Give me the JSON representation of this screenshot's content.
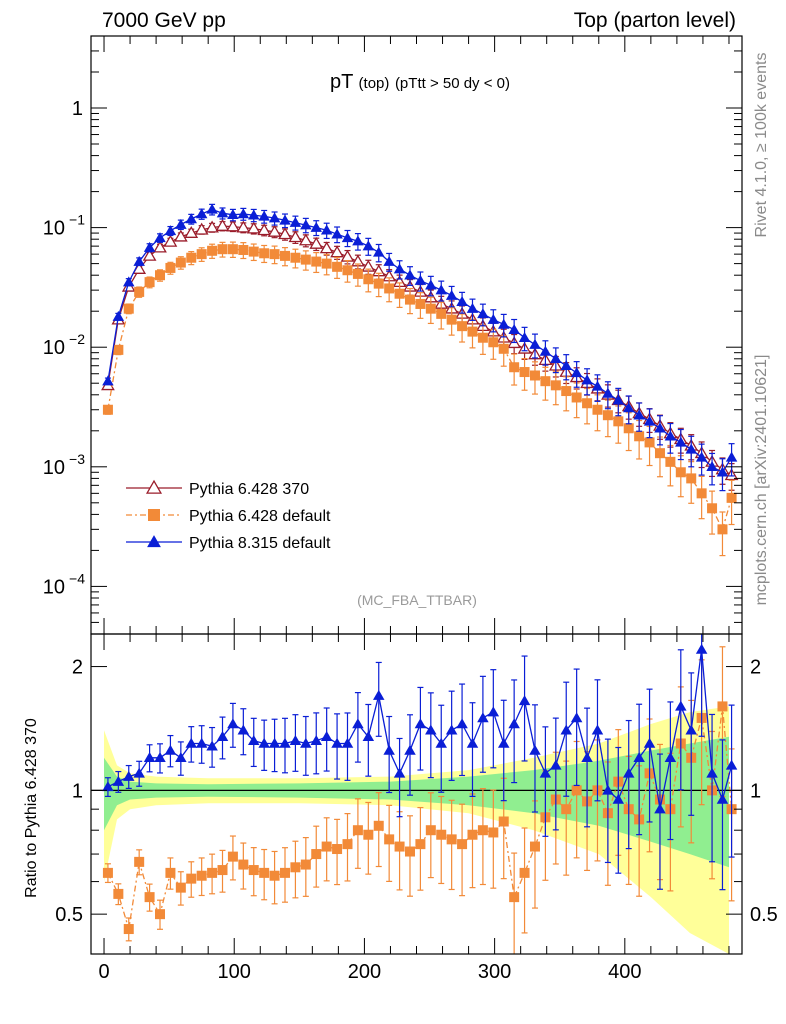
{
  "header": {
    "left": "7000 GeV pp",
    "right": "Top (parton level)"
  },
  "side_labels": {
    "rivet": "Rivet 4.1.0, ≥ 100k events",
    "mcplots": "mcplots.cern.ch [arXiv:2401.10621]"
  },
  "colors": {
    "p6_370": "#9a1c2a",
    "p6_default": "#f28a38",
    "p8_default": "#0a1ed6",
    "band_yellow": "#ffff99",
    "band_green": "#90ee90"
  },
  "chart_data": [
    {
      "type": "line",
      "panel": "main",
      "title_main": "pT",
      "title_sub": "(top)",
      "title_cut": "(pTtt > 50 dy < 0)",
      "annotation": "(MC_FBA_TTBAR)",
      "yscale": "log",
      "xlim": [
        -10,
        490
      ],
      "ylim": [
        4e-05,
        4
      ],
      "ytick_labels": [
        {
          "v": 1,
          "base": "1",
          "exp": ""
        },
        {
          "v": 0.1,
          "base": "10",
          "exp": "−1"
        },
        {
          "v": 0.01,
          "base": "10",
          "exp": "−2"
        },
        {
          "v": 0.001,
          "base": "10",
          "exp": "−3"
        },
        {
          "v": 0.0001,
          "base": "10",
          "exp": "−4"
        }
      ],
      "legend": {
        "position": "lower-left",
        "entries": [
          {
            "key": "p6_370",
            "label": "Pythia 6.428 370"
          },
          {
            "key": "p6_default",
            "label": "Pythia 6.428 default"
          },
          {
            "key": "p8_default",
            "label": "Pythia 8.315 default"
          }
        ]
      },
      "series": [
        {
          "name": "Pythia 6.428 370",
          "key": "p6_370",
          "marker": "open-triangle",
          "points": [
            [
              3,
              0.0048
            ],
            [
              11,
              0.017
            ],
            [
              19,
              0.032
            ],
            [
              27,
              0.045
            ],
            [
              35,
              0.058
            ],
            [
              43,
              0.068
            ],
            [
              51,
              0.076
            ],
            [
              59,
              0.084
            ],
            [
              67,
              0.09
            ],
            [
              75,
              0.096
            ],
            [
              83,
              0.1
            ],
            [
              91,
              0.103
            ],
            [
              99,
              0.102
            ],
            [
              107,
              0.1
            ],
            [
              115,
              0.098
            ],
            [
              123,
              0.095
            ],
            [
              131,
              0.092
            ],
            [
              139,
              0.088
            ],
            [
              147,
              0.083
            ],
            [
              155,
              0.078
            ],
            [
              163,
              0.073
            ],
            [
              171,
              0.067
            ],
            [
              179,
              0.062
            ],
            [
              187,
              0.057
            ],
            [
              195,
              0.052
            ],
            [
              203,
              0.047
            ],
            [
              211,
              0.043
            ],
            [
              219,
              0.039
            ],
            [
              227,
              0.035
            ],
            [
              235,
              0.032
            ],
            [
              243,
              0.029
            ],
            [
              251,
              0.026
            ],
            [
              259,
              0.023
            ],
            [
              267,
              0.021
            ],
            [
              275,
              0.019
            ],
            [
              283,
              0.017
            ],
            [
              291,
              0.015
            ],
            [
              299,
              0.0135
            ],
            [
              307,
              0.012
            ],
            [
              315,
              0.0108
            ],
            [
              323,
              0.0097
            ],
            [
              331,
              0.0087
            ],
            [
              339,
              0.0078
            ],
            [
              347,
              0.007
            ],
            [
              355,
              0.0062
            ],
            [
              363,
              0.0056
            ],
            [
              371,
              0.005
            ],
            [
              379,
              0.0045
            ],
            [
              387,
              0.004
            ],
            [
              395,
              0.0036
            ],
            [
              403,
              0.0032
            ],
            [
              411,
              0.0028
            ],
            [
              419,
              0.0025
            ],
            [
              427,
              0.0022
            ],
            [
              435,
              0.0019
            ],
            [
              443,
              0.0017
            ],
            [
              451,
              0.0015
            ],
            [
              459,
              0.0013
            ],
            [
              467,
              0.0011
            ],
            [
              475,
              0.00095
            ],
            [
              482,
              0.00085
            ]
          ],
          "rel_err": 0.05
        },
        {
          "name": "Pythia 6.428 default",
          "key": "p6_default",
          "marker": "filled-square",
          "points": [
            [
              3,
              0.003
            ],
            [
              11,
              0.0095
            ],
            [
              19,
              0.021
            ],
            [
              27,
              0.029
            ],
            [
              35,
              0.035
            ],
            [
              43,
              0.04
            ],
            [
              51,
              0.046
            ],
            [
              59,
              0.051
            ],
            [
              67,
              0.056
            ],
            [
              75,
              0.06
            ],
            [
              83,
              0.064
            ],
            [
              91,
              0.066
            ],
            [
              99,
              0.066
            ],
            [
              107,
              0.065
            ],
            [
              115,
              0.063
            ],
            [
              123,
              0.061
            ],
            [
              131,
              0.06
            ],
            [
              139,
              0.058
            ],
            [
              147,
              0.056
            ],
            [
              155,
              0.054
            ],
            [
              163,
              0.052
            ],
            [
              171,
              0.05
            ],
            [
              179,
              0.047
            ],
            [
              187,
              0.044
            ],
            [
              195,
              0.041
            ],
            [
              203,
              0.037
            ],
            [
              211,
              0.034
            ],
            [
              219,
              0.031
            ],
            [
              227,
              0.028
            ],
            [
              235,
              0.025
            ],
            [
              243,
              0.023
            ],
            [
              251,
              0.021
            ],
            [
              259,
              0.019
            ],
            [
              267,
              0.017
            ],
            [
              275,
              0.015
            ],
            [
              283,
              0.0135
            ],
            [
              291,
              0.012
            ],
            [
              299,
              0.011
            ],
            [
              307,
              0.0097
            ],
            [
              315,
              0.0068
            ],
            [
              323,
              0.0062
            ],
            [
              331,
              0.0058
            ],
            [
              339,
              0.0052
            ],
            [
              347,
              0.0048
            ],
            [
              355,
              0.0043
            ],
            [
              363,
              0.0038
            ],
            [
              371,
              0.0034
            ],
            [
              379,
              0.003
            ],
            [
              387,
              0.0027
            ],
            [
              395,
              0.0024
            ],
            [
              403,
              0.0021
            ],
            [
              411,
              0.0018
            ],
            [
              419,
              0.0016
            ],
            [
              427,
              0.0013
            ],
            [
              435,
              0.0011
            ],
            [
              443,
              0.0009
            ],
            [
              451,
              0.0008
            ],
            [
              459,
              0.0006
            ],
            [
              467,
              0.00045
            ],
            [
              475,
              0.0003
            ],
            [
              482,
              0.00055
            ]
          ],
          "rel_err": 0.08
        },
        {
          "name": "Pythia 8.315 default",
          "key": "p8_default",
          "marker": "filled-triangle",
          "points": [
            [
              3,
              0.0052
            ],
            [
              11,
              0.018
            ],
            [
              19,
              0.035
            ],
            [
              27,
              0.052
            ],
            [
              35,
              0.068
            ],
            [
              43,
              0.082
            ],
            [
              51,
              0.094
            ],
            [
              59,
              0.106
            ],
            [
              67,
              0.118
            ],
            [
              75,
              0.13
            ],
            [
              83,
              0.142
            ],
            [
              91,
              0.132
            ],
            [
              99,
              0.128
            ],
            [
              107,
              0.13
            ],
            [
              115,
              0.127
            ],
            [
              123,
              0.124
            ],
            [
              131,
              0.12
            ],
            [
              139,
              0.115
            ],
            [
              147,
              0.11
            ],
            [
              155,
              0.105
            ],
            [
              163,
              0.1
            ],
            [
              171,
              0.095
            ],
            [
              179,
              0.088
            ],
            [
              187,
              0.082
            ],
            [
              195,
              0.077
            ],
            [
              203,
              0.07
            ],
            [
              211,
              0.062
            ],
            [
              219,
              0.052
            ],
            [
              227,
              0.045
            ],
            [
              235,
              0.04
            ],
            [
              243,
              0.036
            ],
            [
              251,
              0.033
            ],
            [
              259,
              0.03
            ],
            [
              267,
              0.027
            ],
            [
              275,
              0.024
            ],
            [
              283,
              0.021
            ],
            [
              291,
              0.019
            ],
            [
              299,
              0.017
            ],
            [
              307,
              0.0155
            ],
            [
              315,
              0.014
            ],
            [
              323,
              0.012
            ],
            [
              331,
              0.0105
            ],
            [
              339,
              0.0092
            ],
            [
              347,
              0.008
            ],
            [
              355,
              0.007
            ],
            [
              363,
              0.0061
            ],
            [
              371,
              0.0053
            ],
            [
              379,
              0.0047
            ],
            [
              387,
              0.0041
            ],
            [
              395,
              0.0036
            ],
            [
              403,
              0.0031
            ],
            [
              411,
              0.0027
            ],
            [
              419,
              0.0024
            ],
            [
              427,
              0.0021
            ],
            [
              435,
              0.0018
            ],
            [
              443,
              0.0016
            ],
            [
              451,
              0.0014
            ],
            [
              459,
              0.0012
            ],
            [
              467,
              0.001
            ],
            [
              475,
              0.0009
            ],
            [
              482,
              0.0012
            ]
          ],
          "rel_err": 0.06
        }
      ]
    },
    {
      "type": "line",
      "panel": "ratio",
      "ylabel": "Ratio to Pythia 6.428 370",
      "yscale": "log",
      "xlim": [
        -10,
        490
      ],
      "ylim": [
        0.4,
        2.4
      ],
      "ytick_labels": [
        {
          "v": 0.5,
          "label": "0.5"
        },
        {
          "v": 1,
          "label": "1"
        },
        {
          "v": 2,
          "label": "2"
        }
      ],
      "xtick_labels": [
        {
          "v": 0,
          "label": "0"
        },
        {
          "v": 100,
          "label": "100"
        },
        {
          "v": 200,
          "label": "200"
        },
        {
          "v": 300,
          "label": "300"
        },
        {
          "v": 400,
          "label": "400"
        }
      ],
      "band": {
        "x": [
          0,
          10,
          20,
          40,
          80,
          150,
          220,
          280,
          330,
          380,
          420,
          450,
          480
        ],
        "yellow": [
          0.4,
          0.15,
          0.1,
          0.08,
          0.07,
          0.07,
          0.08,
          0.12,
          0.2,
          0.3,
          0.45,
          0.55,
          0.6
        ],
        "green": [
          0.2,
          0.08,
          0.05,
          0.04,
          0.035,
          0.04,
          0.05,
          0.08,
          0.12,
          0.18,
          0.25,
          0.3,
          0.35
        ]
      },
      "series": [
        {
          "name": "Pythia 6.428 default",
          "key": "p6_default",
          "values": [
            0.63,
            0.56,
            0.46,
            0.67,
            0.55,
            0.5,
            0.63,
            0.58,
            0.61,
            0.62,
            0.63,
            0.64,
            0.69,
            0.66,
            0.64,
            0.63,
            0.62,
            0.63,
            0.65,
            0.66,
            0.7,
            0.73,
            0.72,
            0.74,
            0.8,
            0.78,
            0.82,
            0.76,
            0.73,
            0.71,
            0.74,
            0.8,
            0.78,
            0.76,
            0.74,
            0.78,
            0.8,
            0.79,
            0.84,
            0.55,
            0.63,
            0.73,
            0.86,
            0.95,
            0.9,
            1.0,
            0.94,
            1.0,
            0.88,
            1.05,
            0.9,
            0.85,
            1.1,
            0.95,
            0.9,
            1.3,
            1.2,
            1.5,
            1.0,
            1.6,
            0.9
          ]
        },
        {
          "name": "Pythia 8.315 default",
          "key": "p8_default",
          "values": [
            1.02,
            1.05,
            1.08,
            1.1,
            1.2,
            1.2,
            1.25,
            1.2,
            1.3,
            1.3,
            1.28,
            1.35,
            1.45,
            1.4,
            1.32,
            1.3,
            1.3,
            1.3,
            1.32,
            1.3,
            1.32,
            1.35,
            1.3,
            1.3,
            1.45,
            1.35,
            1.7,
            1.25,
            1.1,
            1.25,
            1.45,
            1.4,
            1.3,
            1.4,
            1.45,
            1.3,
            1.5,
            1.55,
            1.3,
            1.45,
            1.65,
            1.25,
            1.1,
            1.15,
            1.4,
            1.5,
            1.2,
            1.4,
            1.0,
            0.95,
            1.1,
            1.2,
            1.3,
            0.9,
            1.2,
            1.6,
            1.4,
            2.2,
            1.1,
            0.95,
            1.15
          ]
        }
      ]
    }
  ]
}
